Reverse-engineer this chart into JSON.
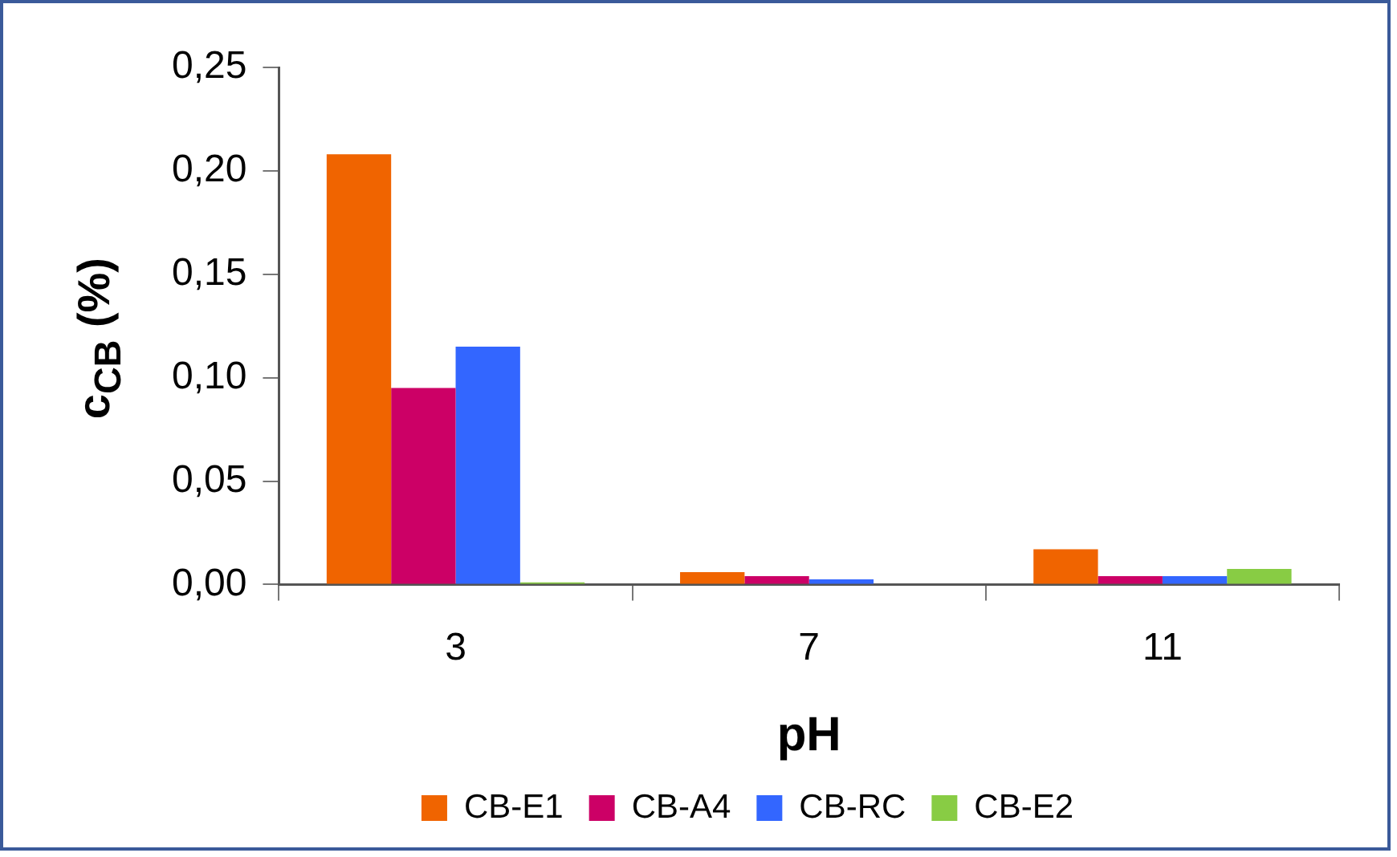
{
  "chart_data": {
    "type": "bar",
    "xlabel": "pH",
    "ylabel": "c$_{CB}$ (%)",
    "categories": [
      "3",
      "7",
      "11"
    ],
    "series": [
      {
        "name": "CB-E1",
        "color": "#f06400",
        "values": [
          0.208,
          0.006,
          0.017
        ]
      },
      {
        "name": "CB-A4",
        "color": "#cc0066",
        "values": [
          0.095,
          0.004,
          0.004
        ]
      },
      {
        "name": "CB-RC",
        "color": "#3366ff",
        "values": [
          0.115,
          0.0025,
          0.004
        ]
      },
      {
        "name": "CB-E2",
        "color": "#88cc44",
        "values": [
          0.001,
          0,
          0.0075
        ]
      }
    ],
    "ylim": [
      0,
      0.25
    ],
    "yticks": [
      {
        "value": 0,
        "label": "0,00"
      },
      {
        "value": 0.05,
        "label": "0,05"
      },
      {
        "value": 0.1,
        "label": "0,10"
      },
      {
        "value": 0.15,
        "label": "0,15"
      },
      {
        "value": 0.2,
        "label": "0,20"
      },
      {
        "value": 0.25,
        "label": "0,25"
      }
    ],
    "grid": false,
    "legend": "bottom"
  }
}
